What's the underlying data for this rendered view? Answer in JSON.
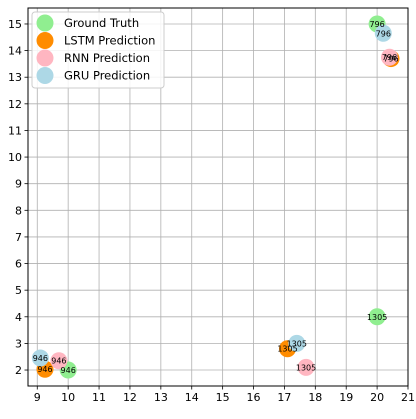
{
  "chart_data": {
    "type": "scatter",
    "title": "",
    "xlabel": "",
    "ylabel": "",
    "xlim": [
      8.7,
      21.0
    ],
    "ylim": [
      1.4,
      15.6
    ],
    "xticks": [
      9,
      10,
      11,
      12,
      13,
      14,
      15,
      16,
      17,
      18,
      19,
      20,
      21
    ],
    "yticks": [
      2,
      3,
      4,
      5,
      6,
      7,
      8,
      9,
      10,
      11,
      12,
      13,
      14,
      15
    ],
    "grid": true,
    "legend_position": "top-left",
    "series": [
      {
        "name": "Ground Truth",
        "color": "#90ee90",
        "points": [
          {
            "x": 20.0,
            "y": 15.0,
            "label": "796"
          },
          {
            "x": 20.0,
            "y": 4.0,
            "label": "1305"
          },
          {
            "x": 10.0,
            "y": 2.0,
            "label": "946"
          }
        ]
      },
      {
        "name": "LSTM Prediction",
        "color": "#ff8c00",
        "points": [
          {
            "x": 20.45,
            "y": 13.7,
            "label": "796"
          },
          {
            "x": 17.1,
            "y": 2.8,
            "label": "1305"
          },
          {
            "x": 9.25,
            "y": 2.03,
            "label": "946"
          }
        ]
      },
      {
        "name": "RNN Prediction",
        "color": "#ffb6c1",
        "points": [
          {
            "x": 20.4,
            "y": 13.75,
            "label": "796"
          },
          {
            "x": 17.7,
            "y": 2.1,
            "label": "1305"
          },
          {
            "x": 9.7,
            "y": 2.35,
            "label": "946"
          }
        ]
      },
      {
        "name": "GRU Prediction",
        "color": "#add8e6",
        "points": [
          {
            "x": 20.2,
            "y": 14.65,
            "label": "796"
          },
          {
            "x": 17.4,
            "y": 3.0,
            "label": "1305"
          },
          {
            "x": 9.1,
            "y": 2.45,
            "label": "946"
          }
        ]
      }
    ]
  }
}
